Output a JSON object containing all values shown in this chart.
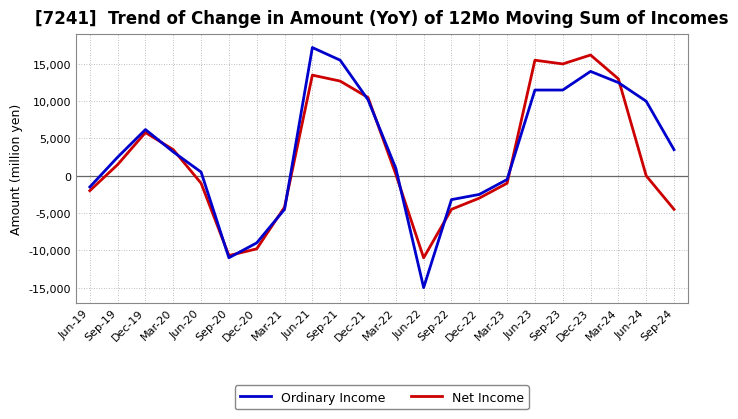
{
  "title": "[7241]  Trend of Change in Amount (YoY) of 12Mo Moving Sum of Incomes",
  "ylabel": "Amount (million yen)",
  "x_labels": [
    "Jun-19",
    "Sep-19",
    "Dec-19",
    "Mar-20",
    "Jun-20",
    "Sep-20",
    "Dec-20",
    "Mar-21",
    "Jun-21",
    "Sep-21",
    "Dec-21",
    "Mar-22",
    "Jun-22",
    "Sep-22",
    "Dec-22",
    "Mar-23",
    "Jun-23",
    "Sep-23",
    "Dec-23",
    "Mar-24",
    "Jun-24",
    "Sep-24"
  ],
  "ordinary_income": [
    -1500,
    2500,
    6200,
    3200,
    500,
    -11000,
    -9000,
    -4500,
    17200,
    15500,
    10200,
    1000,
    -15000,
    -3200,
    -2500,
    -500,
    11500,
    11500,
    14000,
    12500,
    10000,
    3500
  ],
  "net_income": [
    -2000,
    1500,
    5800,
    3500,
    -1000,
    -10700,
    -9800,
    -4200,
    13500,
    12700,
    10500,
    200,
    -11000,
    -4500,
    -3000,
    -1000,
    15500,
    15000,
    16200,
    13000,
    0,
    -4500
  ],
  "ordinary_income_color": "#0000cc",
  "net_income_color": "#cc0000",
  "ylim": [
    -17000,
    19000
  ],
  "yticks": [
    -15000,
    -10000,
    -5000,
    0,
    5000,
    10000,
    15000
  ],
  "background_color": "#ffffff",
  "grid_color": "#aaaaaa",
  "title_fontsize": 12,
  "tick_fontsize": 8,
  "ylabel_fontsize": 9,
  "legend_labels": [
    "Ordinary Income",
    "Net Income"
  ],
  "legend_fontsize": 9
}
